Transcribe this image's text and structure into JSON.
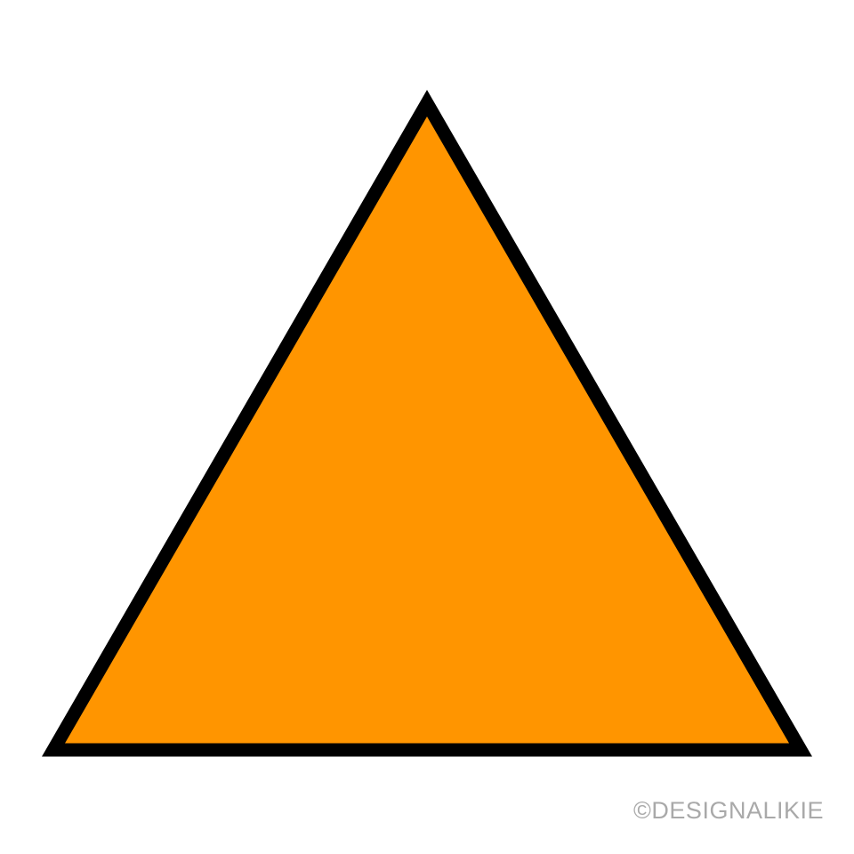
{
  "illustration": {
    "shape": "triangle-icon",
    "fill_color": "#FF9500",
    "stroke_color": "#000000",
    "background_color": "#FFFFFF"
  },
  "watermark": {
    "text": "©DESIGNALIKIE",
    "color": "#A9A9A9"
  }
}
